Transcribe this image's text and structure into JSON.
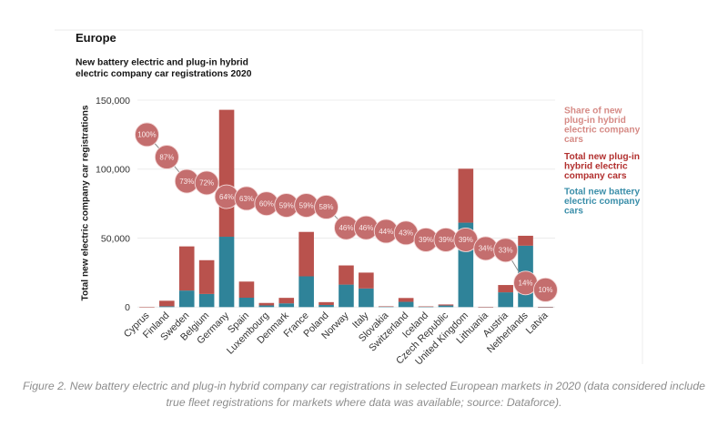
{
  "caption": {
    "line1": "Figure 2. New battery electric and plug-in hybrid company car registrations in selected European markets in 2020 (data considered include",
    "line2": "true fleet registrations for markets where data was available; source: Dataforce)."
  },
  "chart_data": {
    "type": "bar",
    "stacked": true,
    "title": "Europe",
    "subtitle": [
      "New battery electric and plug-in hybrid",
      "electric company car registrations 2020"
    ],
    "xlabel": "",
    "ylabel": "Total new electric company car registrations",
    "ylim": [
      0,
      150000
    ],
    "yticks": [
      0,
      50000,
      100000,
      150000
    ],
    "ytick_labels": [
      "0",
      "50,000",
      "100,000",
      "150,000"
    ],
    "grid": true,
    "legend_position": "right",
    "legend": [
      {
        "lines": [
          "Share of new",
          "plug-in hybrid",
          "electric company",
          "cars"
        ],
        "color": "#d68b86"
      },
      {
        "lines": [
          "Total new plug-in",
          "hybrid electric",
          "company cars"
        ],
        "color": "#b2302f"
      },
      {
        "lines": [
          "Total new battery",
          "electric company",
          "cars"
        ],
        "color": "#3a8ea9"
      }
    ],
    "categories": [
      "Cyprus",
      "Finland",
      "Sweden",
      "Belgium",
      "Germany",
      "Spain",
      "Luxembourg",
      "Denmark",
      "France",
      "Poland",
      "Norway",
      "Italy",
      "Slovakia",
      "Switzerland",
      "Iceland",
      "Czech Republic",
      "United Kingdom",
      "Lithuania",
      "Austria",
      "Netherlands",
      "Latvia"
    ],
    "series": [
      {
        "key": "bev",
        "name": "Total new battery electric company cars",
        "color": "#2f8399",
        "values": [
          0,
          600,
          12000,
          9500,
          51000,
          6800,
          1200,
          2700,
          22300,
          1500,
          16300,
          13500,
          340,
          3800,
          300,
          1150,
          61200,
          130,
          10700,
          44500,
          90
        ]
      },
      {
        "key": "phev",
        "name": "Total new plug-in hybrid electric company cars",
        "color": "#b9524d",
        "values": [
          50,
          4000,
          32000,
          24500,
          92000,
          11700,
          1800,
          4000,
          32200,
          2100,
          13900,
          11500,
          260,
          2800,
          200,
          750,
          39100,
          70,
          5300,
          7200,
          10
        ]
      }
    ],
    "share": {
      "name": "Share of new plug-in hybrid electric company cars",
      "color": "#c46e6e",
      "unit": "%",
      "ylim": [
        0,
        120
      ],
      "values": [
        100,
        87,
        73,
        72,
        64,
        63,
        60,
        59,
        59,
        58,
        46,
        46,
        44,
        43,
        39,
        39,
        39,
        34,
        33,
        14,
        10
      ],
      "labels": [
        "100%",
        "87%",
        "73%",
        "72%",
        "64%",
        "63%",
        "60%",
        "59%",
        "59%",
        "58%",
        "46%",
        "46%",
        "44%",
        "43%",
        "39%",
        "39%",
        "39%",
        "34%",
        "33%",
        "14%",
        "10%"
      ]
    }
  }
}
